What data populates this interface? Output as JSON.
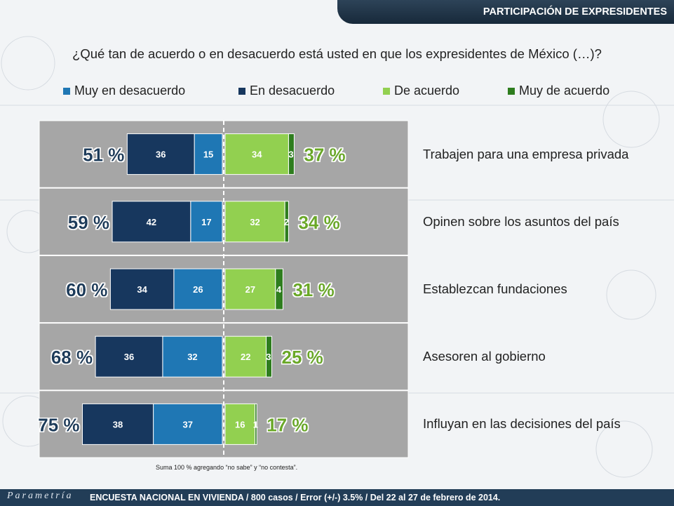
{
  "header": {
    "title": "PARTICIPACIÓN DE EXPRESIDENTES"
  },
  "question": "¿Qué tan de acuerdo o en desacuerdo está usted en que los expresidentes de México (…)?",
  "legend": [
    {
      "label": "Muy en desacuerdo",
      "color": "#1f77b4"
    },
    {
      "label": "En desacuerdo",
      "color": "#17375e"
    },
    {
      "label": "De acuerdo",
      "color": "#92d050"
    },
    {
      "label": "Muy de acuerdo",
      "color": "#2e7d1e"
    }
  ],
  "chart_data": {
    "type": "bar",
    "orientation": "horizontal diverging",
    "categories": [
      "Trabajen para una empresa privada",
      "Opinen sobre los asuntos del país",
      "Establezcan fundaciones",
      "Asesoren al gobierno",
      "Influyan en las decisiones del país"
    ],
    "series": [
      {
        "name": "En desacuerdo",
        "side": "left",
        "values": [
          36,
          42,
          34,
          36,
          38
        ],
        "color": "#17375e"
      },
      {
        "name": "Muy en desacuerdo",
        "side": "left",
        "values": [
          15,
          17,
          26,
          32,
          37
        ],
        "color": "#1f77b4"
      },
      {
        "name": "De acuerdo",
        "side": "right",
        "values": [
          34,
          32,
          27,
          22,
          16
        ],
        "color": "#92d050"
      },
      {
        "name": "Muy de acuerdo",
        "side": "right",
        "values": [
          3,
          2,
          4,
          3,
          1
        ],
        "color": "#2e7d1e"
      }
    ],
    "disagree_totals": [
      "51 %",
      "59 %",
      "60 %",
      "68 %",
      "75 %"
    ],
    "agree_totals": [
      "37 %",
      "34 %",
      "31 %",
      "25 %",
      "17 %"
    ]
  },
  "note": "Suma 100 % agregando “no sabe” y “no contesta”.",
  "footer": {
    "logo": "Parametría",
    "text": "ENCUESTA NACIONAL EN VIVIENDA / 800 casos / Error (+/-)  3.5% / Del 22 al 27 de febrero de 2014."
  }
}
